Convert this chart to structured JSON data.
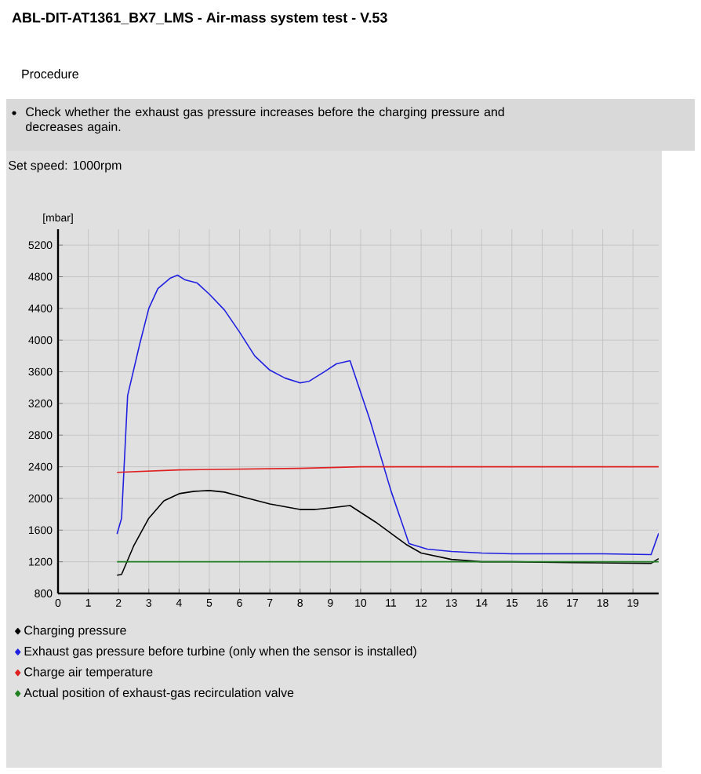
{
  "chart_data": {
    "type": "line",
    "title": "ABL-DIT-AT1361_BX7_LMS - Air-mass system test - V.53",
    "subtitle": "Check whether the exhaust gas pressure increases before the charging pressure and decreases again.",
    "annotations": [
      "Procedure",
      "Set speed: 1000rpm"
    ],
    "ylabel": "[mbar]",
    "xlim": [
      0,
      19.85
    ],
    "xticks": [
      0,
      1,
      2,
      3,
      4,
      5,
      6,
      7,
      8,
      9,
      10,
      11,
      12,
      13,
      14,
      15,
      16,
      17,
      18,
      19
    ],
    "ylim": [
      800,
      5400
    ],
    "yticks": [
      800,
      1200,
      1600,
      2000,
      2400,
      2800,
      3200,
      3600,
      4000,
      4400,
      4800,
      5200
    ],
    "grid": true,
    "legend": "bottom",
    "series": [
      {
        "name": "Charging pressure",
        "color": "#000000",
        "x": [
          1.95,
          2.1,
          2.5,
          3,
          3.5,
          4,
          4.5,
          5,
          5.5,
          6,
          7,
          8,
          8.5,
          9,
          9.65,
          10.5,
          11.5,
          12,
          13,
          14,
          15,
          17,
          19.6,
          19.85
        ],
        "values": [
          1030,
          1040,
          1400,
          1750,
          1970,
          2060,
          2090,
          2100,
          2080,
          2030,
          1930,
          1860,
          1860,
          1880,
          1910,
          1700,
          1420,
          1310,
          1230,
          1200,
          1200,
          1190,
          1180,
          1240
        ]
      },
      {
        "name": "Exhaust gas pressure before turbine (only when the sensor is installed)",
        "color": "#2020e0",
        "x": [
          1.95,
          2.1,
          2.3,
          2.7,
          3,
          3.3,
          3.7,
          3.95,
          4.2,
          4.6,
          5,
          5.5,
          6,
          6.5,
          7,
          7.5,
          8,
          8.3,
          8.8,
          9.2,
          9.65,
          10.3,
          11,
          11.6,
          12.2,
          13,
          14,
          15,
          16,
          17,
          18,
          19.6,
          19.85
        ],
        "values": [
          1550,
          1750,
          3300,
          3950,
          4400,
          4650,
          4780,
          4820,
          4760,
          4720,
          4580,
          4380,
          4100,
          3800,
          3620,
          3520,
          3460,
          3480,
          3600,
          3700,
          3740,
          3000,
          2100,
          1430,
          1360,
          1330,
          1310,
          1300,
          1300,
          1300,
          1300,
          1290,
          1560
        ]
      },
      {
        "name": "Charge air temperature",
        "color": "#e02020",
        "x": [
          1.95,
          4,
          8,
          10,
          19.85
        ],
        "values": [
          2330,
          2360,
          2380,
          2400,
          2400
        ]
      },
      {
        "name": "Actual position of exhaust-gas recirculation valve",
        "color": "#208020",
        "x": [
          1.95,
          19.85
        ],
        "values": [
          1200,
          1200
        ]
      }
    ]
  }
}
